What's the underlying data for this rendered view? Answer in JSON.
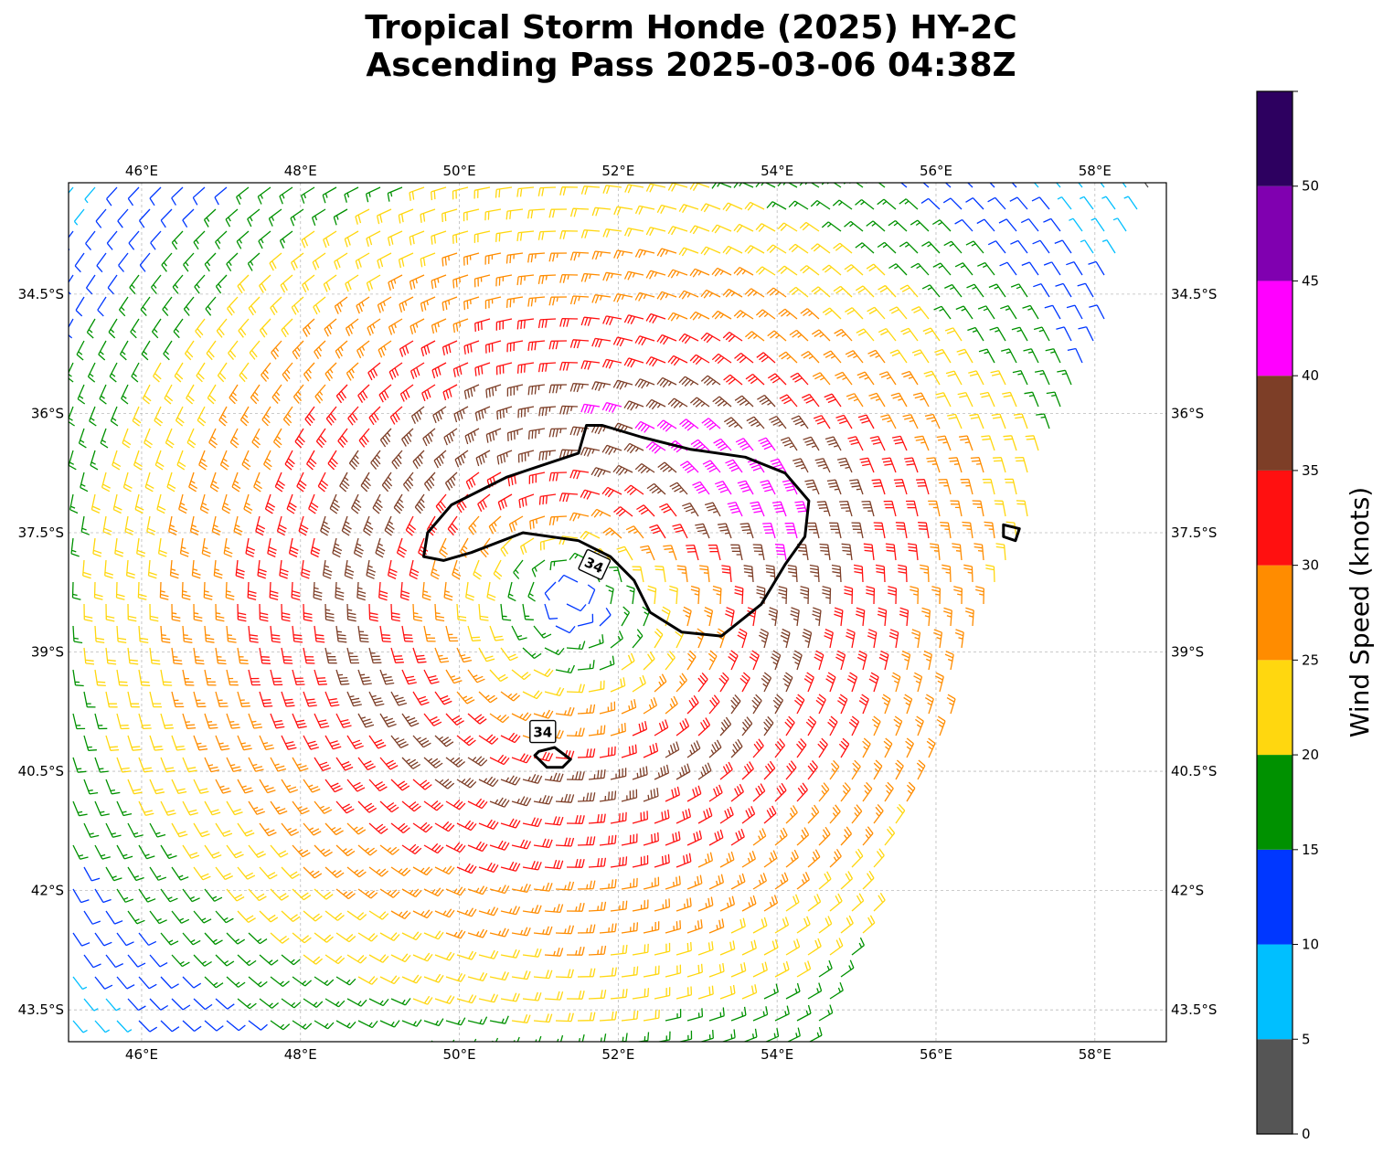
{
  "title": {
    "line1": "Tropical Storm Honde (2025) HY-2C",
    "line2": "Ascending Pass 2025-03-06 04:38Z"
  },
  "map": {
    "lon_range": [
      45.08,
      58.9
    ],
    "lat_range": [
      -43.9,
      -33.1
    ],
    "lon_ticks": [
      {
        "value": 46,
        "label": "46°E"
      },
      {
        "value": 48,
        "label": "48°E"
      },
      {
        "value": 50,
        "label": "50°E"
      },
      {
        "value": 52,
        "label": "52°E"
      },
      {
        "value": 54,
        "label": "54°E"
      },
      {
        "value": 56,
        "label": "56°E"
      },
      {
        "value": 58,
        "label": "58°E"
      }
    ],
    "lat_ticks": [
      {
        "value": -34.5,
        "label": "34.5°S"
      },
      {
        "value": -36,
        "label": "36°S"
      },
      {
        "value": -37.5,
        "label": "37.5°S"
      },
      {
        "value": -39,
        "label": "39°S"
      },
      {
        "value": -40.5,
        "label": "40.5°S"
      },
      {
        "value": -42,
        "label": "42°S"
      },
      {
        "value": -43.5,
        "label": "43.5°S"
      }
    ],
    "grid": true,
    "storm_center": {
      "lon": 51.4,
      "lat": -38.3
    },
    "barbs_field": {
      "type": "cyclonic wind barbs (Southern Hemisphere, clockwise)",
      "swath_east_edge_lon_at_north": 58.8,
      "swath_east_edge_lon_at_south": 54.6
    },
    "contour_34kt": {
      "label": "34",
      "main_polygon": [
        [
          51.6,
          -36.15
        ],
        [
          51.5,
          -36.5
        ],
        [
          50.6,
          -36.8
        ],
        [
          49.9,
          -37.15
        ],
        [
          49.6,
          -37.5
        ],
        [
          49.55,
          -37.8
        ],
        [
          49.8,
          -37.85
        ],
        [
          50.15,
          -37.75
        ],
        [
          50.8,
          -37.5
        ],
        [
          51.5,
          -37.6
        ],
        [
          51.9,
          -37.8
        ],
        [
          52.2,
          -38.1
        ],
        [
          52.4,
          -38.5
        ],
        [
          52.8,
          -38.75
        ],
        [
          53.3,
          -38.8
        ],
        [
          53.8,
          -38.4
        ],
        [
          54.1,
          -37.9
        ],
        [
          54.35,
          -37.55
        ],
        [
          54.4,
          -37.1
        ],
        [
          54.1,
          -36.75
        ],
        [
          53.6,
          -36.55
        ],
        [
          52.9,
          -36.45
        ],
        [
          52.3,
          -36.3
        ],
        [
          51.8,
          -36.15
        ]
      ],
      "label_positions": [
        {
          "lon": 51.7,
          "lat": -37.9
        },
        {
          "lon": 51.05,
          "lat": -40.0
        }
      ],
      "small_polygons": [
        [
          [
            51.0,
            -40.25
          ],
          [
            51.2,
            -40.2
          ],
          [
            51.4,
            -40.35
          ],
          [
            51.3,
            -40.45
          ],
          [
            51.1,
            -40.45
          ],
          [
            50.95,
            -40.3
          ]
        ],
        [
          [
            56.85,
            -37.4
          ],
          [
            57.05,
            -37.45
          ],
          [
            57.0,
            -37.6
          ],
          [
            56.85,
            -37.55
          ]
        ]
      ]
    }
  },
  "colorbar": {
    "label": "Wind Speed (knots)",
    "bins": [
      {
        "min": 0,
        "max": 5,
        "color": "#555555"
      },
      {
        "min": 5,
        "max": 10,
        "color": "#00bfff"
      },
      {
        "min": 10,
        "max": 15,
        "color": "#0037ff"
      },
      {
        "min": 15,
        "max": 20,
        "color": "#009100"
      },
      {
        "min": 20,
        "max": 25,
        "color": "#ffd70f"
      },
      {
        "min": 25,
        "max": 30,
        "color": "#ff8c00"
      },
      {
        "min": 30,
        "max": 35,
        "color": "#ff1010"
      },
      {
        "min": 35,
        "max": 40,
        "color": "#7d3e27"
      },
      {
        "min": 40,
        "max": 45,
        "color": "#ff00ff"
      },
      {
        "min": 45,
        "max": 50,
        "color": "#8000b0"
      },
      {
        "min": 50,
        "max": 55,
        "color": "#2d0060"
      }
    ],
    "ticks": [
      "0",
      "5",
      "10",
      "15",
      "20",
      "25",
      "30",
      "35",
      "40",
      "45",
      "50"
    ]
  }
}
